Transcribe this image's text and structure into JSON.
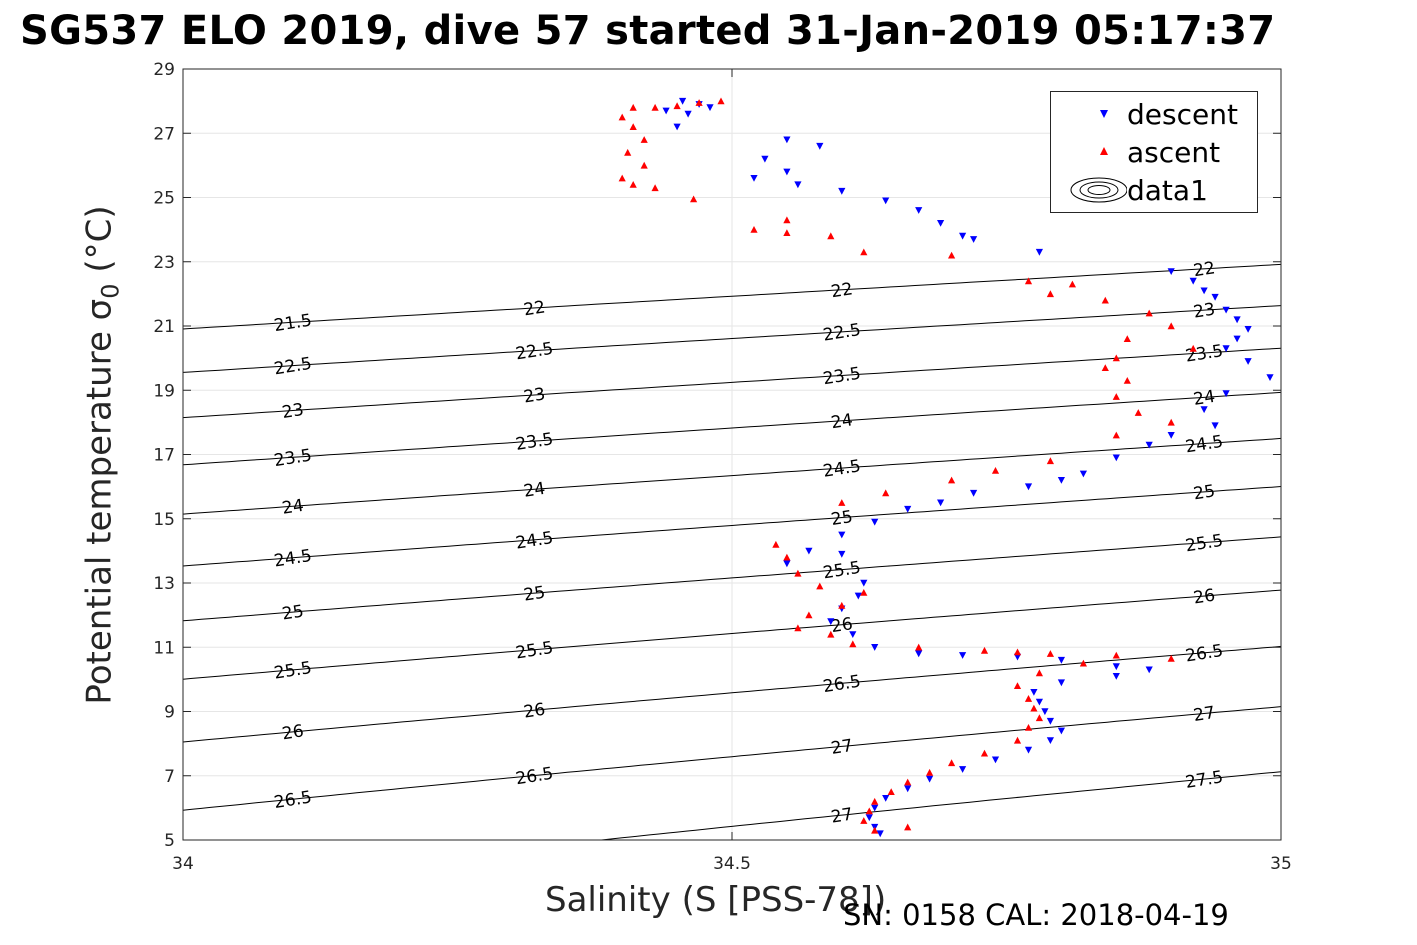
{
  "title": "SG537 ELO 2019, dive 57 started 31-Jan-2019 05:17:37",
  "footer": "SN: 0158  CAL: 2018-04-19",
  "chart_data": {
    "type": "scatter",
    "xlabel": "Salinity (S [PSS-78])",
    "ylabel_main": "Potential temperature σ",
    "ylabel_sub": "0",
    "ylabel_unit": " (°C)",
    "xlim": [
      34,
      35
    ],
    "ylim": [
      5,
      29
    ],
    "xticks": [
      "34",
      "34.5",
      "35"
    ],
    "yticks": [
      "5",
      "7",
      "9",
      "11",
      "13",
      "15",
      "17",
      "19",
      "21",
      "23",
      "25",
      "27",
      "29"
    ],
    "grid": true,
    "legend_position": "top-right",
    "legend": [
      "descent",
      "ascent",
      "data1"
    ],
    "colors": {
      "descent": "#0000ff",
      "ascent": "#ff0000",
      "contour": "#000000",
      "grid": "#e6e6e6",
      "axis": "#262626"
    },
    "contour_labels": [
      "21.5",
      "22",
      "22",
      "22",
      "22.5",
      "22.5",
      "22.5",
      "23",
      "23",
      "23",
      "23.5",
      "23.5",
      "23.5",
      "23.5",
      "24",
      "24",
      "24",
      "24",
      "24.5",
      "24.5",
      "24.5",
      "24.5",
      "25",
      "25",
      "25",
      "25",
      "25.5",
      "25.5",
      "25.5",
      "25.5",
      "26",
      "26",
      "26",
      "26",
      "26.5",
      "26.5",
      "26.5",
      "26.5",
      "27",
      "27",
      "27",
      "27.5"
    ],
    "series": [
      {
        "name": "descent",
        "marker": "triangle-down",
        "points": [
          [
            34.455,
            28.0
          ],
          [
            34.47,
            27.9
          ],
          [
            34.48,
            27.8
          ],
          [
            34.46,
            27.6
          ],
          [
            34.45,
            27.2
          ],
          [
            34.44,
            27.7
          ],
          [
            34.55,
            26.8
          ],
          [
            34.58,
            26.6
          ],
          [
            34.53,
            26.2
          ],
          [
            34.55,
            25.8
          ],
          [
            34.52,
            25.6
          ],
          [
            34.56,
            25.4
          ],
          [
            34.6,
            25.2
          ],
          [
            34.64,
            24.9
          ],
          [
            34.67,
            24.6
          ],
          [
            34.69,
            24.2
          ],
          [
            34.71,
            23.8
          ],
          [
            34.72,
            23.7
          ],
          [
            34.78,
            23.3
          ],
          [
            34.9,
            22.7
          ],
          [
            34.92,
            22.4
          ],
          [
            34.93,
            22.1
          ],
          [
            34.94,
            21.9
          ],
          [
            34.95,
            21.5
          ],
          [
            34.96,
            21.2
          ],
          [
            34.97,
            20.9
          ],
          [
            34.96,
            20.6
          ],
          [
            34.95,
            20.3
          ],
          [
            34.97,
            19.9
          ],
          [
            34.99,
            19.4
          ],
          [
            34.95,
            18.9
          ],
          [
            34.93,
            18.4
          ],
          [
            34.94,
            17.9
          ],
          [
            34.9,
            17.6
          ],
          [
            34.88,
            17.3
          ],
          [
            34.85,
            16.9
          ],
          [
            34.82,
            16.4
          ],
          [
            34.8,
            16.2
          ],
          [
            34.77,
            16.0
          ],
          [
            34.72,
            15.8
          ],
          [
            34.69,
            15.5
          ],
          [
            34.66,
            15.3
          ],
          [
            34.63,
            14.9
          ],
          [
            34.6,
            14.5
          ],
          [
            34.57,
            14.0
          ],
          [
            34.55,
            13.6
          ],
          [
            34.6,
            13.9
          ],
          [
            34.62,
            13.0
          ],
          [
            34.615,
            12.6
          ],
          [
            34.6,
            12.2
          ],
          [
            34.59,
            11.8
          ],
          [
            34.61,
            11.4
          ],
          [
            34.63,
            11.0
          ],
          [
            34.67,
            10.8
          ],
          [
            34.71,
            10.75
          ],
          [
            34.76,
            10.7
          ],
          [
            34.8,
            10.6
          ],
          [
            34.85,
            10.4
          ],
          [
            34.88,
            10.3
          ],
          [
            34.85,
            10.1
          ],
          [
            34.8,
            9.9
          ],
          [
            34.775,
            9.6
          ],
          [
            34.78,
            9.3
          ],
          [
            34.785,
            9.0
          ],
          [
            34.79,
            8.7
          ],
          [
            34.8,
            8.4
          ],
          [
            34.79,
            8.1
          ],
          [
            34.77,
            7.8
          ],
          [
            34.74,
            7.5
          ],
          [
            34.71,
            7.2
          ],
          [
            34.68,
            6.9
          ],
          [
            34.66,
            6.6
          ],
          [
            34.64,
            6.3
          ],
          [
            34.63,
            6.0
          ],
          [
            34.625,
            5.7
          ],
          [
            34.63,
            5.4
          ],
          [
            34.635,
            5.2
          ]
        ]
      },
      {
        "name": "ascent",
        "marker": "triangle-up",
        "points": [
          [
            34.41,
            27.8
          ],
          [
            34.43,
            27.8
          ],
          [
            34.45,
            27.85
          ],
          [
            34.47,
            27.95
          ],
          [
            34.49,
            28.0
          ],
          [
            34.4,
            27.5
          ],
          [
            34.41,
            27.2
          ],
          [
            34.42,
            26.8
          ],
          [
            34.405,
            26.4
          ],
          [
            34.42,
            26.0
          ],
          [
            34.4,
            25.6
          ],
          [
            34.41,
            25.4
          ],
          [
            34.43,
            25.3
          ],
          [
            34.465,
            24.95
          ],
          [
            34.55,
            24.3
          ],
          [
            34.52,
            24.0
          ],
          [
            34.55,
            23.9
          ],
          [
            34.59,
            23.8
          ],
          [
            34.62,
            23.3
          ],
          [
            34.7,
            23.2
          ],
          [
            34.77,
            22.4
          ],
          [
            34.81,
            22.3
          ],
          [
            34.79,
            22.0
          ],
          [
            34.84,
            21.8
          ],
          [
            34.88,
            21.4
          ],
          [
            34.9,
            21.0
          ],
          [
            34.86,
            20.6
          ],
          [
            34.92,
            20.3
          ],
          [
            34.85,
            20.0
          ],
          [
            34.84,
            19.7
          ],
          [
            34.86,
            19.3
          ],
          [
            34.85,
            18.8
          ],
          [
            34.87,
            18.3
          ],
          [
            34.9,
            18.0
          ],
          [
            34.85,
            17.6
          ],
          [
            34.79,
            16.8
          ],
          [
            34.74,
            16.5
          ],
          [
            34.7,
            16.2
          ],
          [
            34.64,
            15.8
          ],
          [
            34.6,
            15.5
          ],
          [
            34.54,
            14.2
          ],
          [
            34.55,
            13.8
          ],
          [
            34.56,
            13.3
          ],
          [
            34.58,
            12.9
          ],
          [
            34.62,
            12.7
          ],
          [
            34.6,
            12.3
          ],
          [
            34.57,
            12.0
          ],
          [
            34.56,
            11.6
          ],
          [
            34.59,
            11.4
          ],
          [
            34.61,
            11.1
          ],
          [
            34.67,
            11.0
          ],
          [
            34.73,
            10.9
          ],
          [
            34.76,
            10.85
          ],
          [
            34.79,
            10.8
          ],
          [
            34.85,
            10.75
          ],
          [
            34.9,
            10.65
          ],
          [
            34.82,
            10.5
          ],
          [
            34.78,
            10.2
          ],
          [
            34.76,
            9.8
          ],
          [
            34.77,
            9.4
          ],
          [
            34.775,
            9.1
          ],
          [
            34.78,
            8.8
          ],
          [
            34.77,
            8.5
          ],
          [
            34.76,
            8.1
          ],
          [
            34.73,
            7.7
          ],
          [
            34.7,
            7.4
          ],
          [
            34.68,
            7.1
          ],
          [
            34.66,
            6.8
          ],
          [
            34.645,
            6.5
          ],
          [
            34.63,
            6.2
          ],
          [
            34.625,
            5.9
          ],
          [
            34.62,
            5.6
          ],
          [
            34.63,
            5.3
          ],
          [
            34.66,
            5.4
          ]
        ]
      }
    ]
  }
}
